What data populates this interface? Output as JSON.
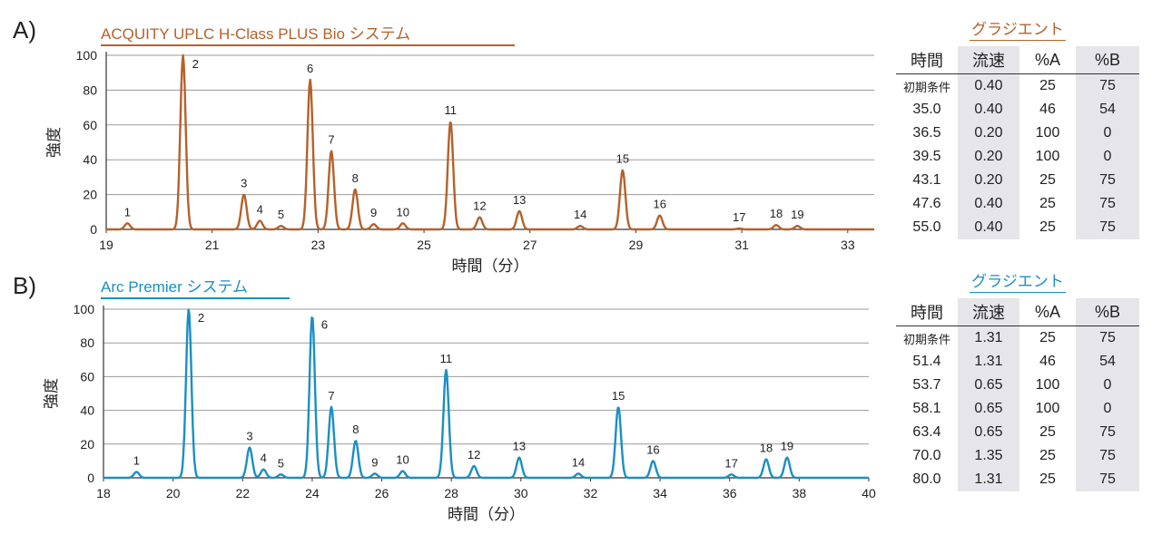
{
  "panels": [
    {
      "label": "A)",
      "title": "ACQUITY UPLC H-Class PLUS Bio システム",
      "color": "#b5612a",
      "ylabel": "強度",
      "xlabel": "時間（分）",
      "table": {
        "heading": "グラジエント",
        "headers": [
          "時間",
          "流速",
          "%A",
          "%B"
        ],
        "rows": [
          [
            "初期条件",
            "0.40",
            "25",
            "75"
          ],
          [
            "35.0",
            "0.40",
            "46",
            "54"
          ],
          [
            "36.5",
            "0.20",
            "100",
            "0"
          ],
          [
            "39.5",
            "0.20",
            "100",
            "0"
          ],
          [
            "43.1",
            "0.20",
            "25",
            "75"
          ],
          [
            "47.6",
            "0.40",
            "25",
            "75"
          ],
          [
            "55.0",
            "0.40",
            "25",
            "75"
          ]
        ]
      }
    },
    {
      "label": "B)",
      "title": "Arc Premier システム",
      "color": "#1a8fc4",
      "ylabel": "強度",
      "xlabel": "時間（分）",
      "table": {
        "heading": "グラジエント",
        "headers": [
          "時間",
          "流速",
          "%A",
          "%B"
        ],
        "rows": [
          [
            "初期条件",
            "1.31",
            "25",
            "75"
          ],
          [
            "51.4",
            "1.31",
            "46",
            "54"
          ],
          [
            "53.7",
            "0.65",
            "100",
            "0"
          ],
          [
            "58.1",
            "0.65",
            "100",
            "0"
          ],
          [
            "63.4",
            "0.65",
            "25",
            "75"
          ],
          [
            "70.0",
            "1.35",
            "25",
            "75"
          ],
          [
            "80.0",
            "1.31",
            "25",
            "75"
          ]
        ]
      }
    }
  ],
  "chart_data": [
    {
      "type": "line",
      "title": "ACQUITY UPLC H-Class PLUS Bio システム",
      "xlabel": "時間（分）",
      "ylabel": "強度",
      "xlim": [
        19,
        33.5
      ],
      "ylim": [
        0,
        100
      ],
      "xticks": [
        19,
        21,
        23,
        25,
        27,
        29,
        31,
        33
      ],
      "yticks": [
        0,
        20,
        40,
        60,
        80,
        100
      ],
      "grid": "horizontal",
      "peaks": [
        {
          "label": "1",
          "x": 19.4,
          "y": 3.5
        },
        {
          "label": "2",
          "x": 20.45,
          "y": 100
        },
        {
          "label": "3",
          "x": 21.6,
          "y": 20
        },
        {
          "label": "4",
          "x": 21.9,
          "y": 5
        },
        {
          "label": "5",
          "x": 22.3,
          "y": 2
        },
        {
          "label": "6",
          "x": 22.85,
          "y": 86
        },
        {
          "label": "7",
          "x": 23.25,
          "y": 45
        },
        {
          "label": "8",
          "x": 23.7,
          "y": 23
        },
        {
          "label": "9",
          "x": 24.05,
          "y": 3
        },
        {
          "label": "10",
          "x": 24.6,
          "y": 3.5
        },
        {
          "label": "11",
          "x": 25.5,
          "y": 62
        },
        {
          "label": "12",
          "x": 26.05,
          "y": 7
        },
        {
          "label": "13",
          "x": 26.8,
          "y": 10.5
        },
        {
          "label": "14",
          "x": 27.95,
          "y": 2
        },
        {
          "label": "15",
          "x": 28.75,
          "y": 34
        },
        {
          "label": "16",
          "x": 29.45,
          "y": 8
        },
        {
          "label": "17",
          "x": 30.95,
          "y": 0.5
        },
        {
          "label": "18",
          "x": 31.65,
          "y": 2.5
        },
        {
          "label": "19",
          "x": 32.05,
          "y": 2
        }
      ]
    },
    {
      "type": "line",
      "title": "Arc Premier システム",
      "xlabel": "時間（分）",
      "ylabel": "強度",
      "xlim": [
        18,
        40
      ],
      "ylim": [
        0,
        100
      ],
      "xticks": [
        18,
        20,
        22,
        24,
        26,
        28,
        30,
        32,
        34,
        36,
        38,
        40
      ],
      "yticks": [
        0,
        20,
        40,
        60,
        80,
        100
      ],
      "grid": "horizontal",
      "peaks": [
        {
          "label": "1",
          "x": 18.95,
          "y": 3.5
        },
        {
          "label": "2",
          "x": 20.45,
          "y": 100
        },
        {
          "label": "3",
          "x": 22.2,
          "y": 18
        },
        {
          "label": "4",
          "x": 22.6,
          "y": 5
        },
        {
          "label": "5",
          "x": 23.1,
          "y": 2
        },
        {
          "label": "6",
          "x": 24.0,
          "y": 96
        },
        {
          "label": "7",
          "x": 24.55,
          "y": 42
        },
        {
          "label": "8",
          "x": 25.25,
          "y": 22
        },
        {
          "label": "9",
          "x": 25.8,
          "y": 2.5
        },
        {
          "label": "10",
          "x": 26.6,
          "y": 4
        },
        {
          "label": "11",
          "x": 27.85,
          "y": 64
        },
        {
          "label": "12",
          "x": 28.65,
          "y": 7
        },
        {
          "label": "13",
          "x": 29.95,
          "y": 12
        },
        {
          "label": "14",
          "x": 31.65,
          "y": 2.5
        },
        {
          "label": "15",
          "x": 32.8,
          "y": 42
        },
        {
          "label": "16",
          "x": 33.8,
          "y": 10
        },
        {
          "label": "17",
          "x": 36.05,
          "y": 2
        },
        {
          "label": "18",
          "x": 37.05,
          "y": 11
        },
        {
          "label": "19",
          "x": 37.65,
          "y": 12
        }
      ]
    }
  ]
}
